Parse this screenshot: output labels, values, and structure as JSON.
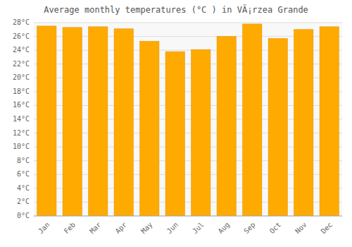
{
  "chart_data": {
    "type": "bar",
    "title": "Average monthly temperatures (°C ) in VÃ¡rzea Grande",
    "categories": [
      "Jan",
      "Feb",
      "Mar",
      "Apr",
      "May",
      "Jun",
      "Jul",
      "Aug",
      "Sep",
      "Oct",
      "Nov",
      "Dec"
    ],
    "values": [
      27.5,
      27.3,
      27.4,
      27.1,
      25.3,
      23.8,
      24.1,
      26.0,
      27.8,
      25.7,
      27.0,
      27.4
    ],
    "color": "#FFAA00",
    "ylim": [
      0,
      28
    ],
    "yticks": [
      {
        "value": 0,
        "label": "0°C"
      },
      {
        "value": 2,
        "label": "2°C"
      },
      {
        "value": 4,
        "label": "4°C"
      },
      {
        "value": 6,
        "label": "6°C"
      },
      {
        "value": 8,
        "label": "8°C"
      },
      {
        "value": 10,
        "label": "10°C"
      },
      {
        "value": 12,
        "label": "12°C"
      },
      {
        "value": 14,
        "label": "14°C"
      },
      {
        "value": 16,
        "label": "16°C"
      },
      {
        "value": 18,
        "label": "18°C"
      },
      {
        "value": 20,
        "label": "20°C"
      },
      {
        "value": 22,
        "label": "22°C"
      },
      {
        "value": 24,
        "label": "24°C"
      },
      {
        "value": 26,
        "label": "26°C"
      },
      {
        "value": 28,
        "label": "28°C"
      }
    ],
    "grid": true
  }
}
